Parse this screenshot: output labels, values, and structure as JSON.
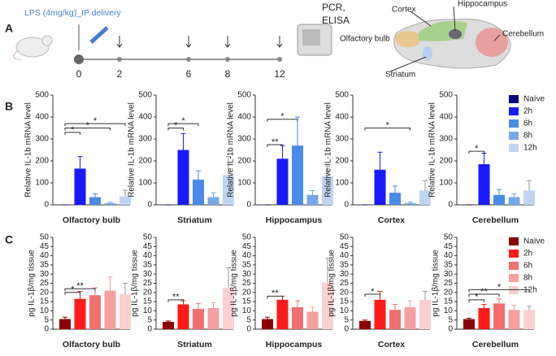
{
  "panel_labels": [
    "A",
    "B",
    "C"
  ],
  "timeline": {
    "label": "LPS (4mg/kg)_IP delivery",
    "times": [
      0,
      2,
      6,
      8,
      12
    ],
    "assay": [
      "PCR,",
      "ELISA"
    ]
  },
  "brain_regions": [
    "Cortex",
    "Hippocampus",
    "Cerebellum",
    "Olfactory bulb",
    "Striatum"
  ],
  "chart_data": [
    {
      "type": "bar",
      "categories": [
        "Olfactory bulb"
      ],
      "ylabel": "Relative IL-1b mRNA level",
      "ylim": [
        0,
        500
      ],
      "yticks": [
        0,
        100,
        200,
        300,
        400,
        500
      ],
      "series": [
        {
          "name": "Naïve",
          "color": "#000080",
          "values": [
            0
          ],
          "errors": [
            0
          ]
        },
        {
          "name": "2h",
          "color": "#1a1aff",
          "values": [
            165
          ],
          "errors": [
            55
          ]
        },
        {
          "name": "6h",
          "color": "#4a8ae8",
          "values": [
            35
          ],
          "errors": [
            15
          ]
        },
        {
          "name": "8h",
          "color": "#78a8e8",
          "values": [
            8
          ],
          "errors": [
            5
          ]
        },
        {
          "name": "12h",
          "color": "#c0d4f2",
          "values": [
            38
          ],
          "errors": [
            28
          ]
        }
      ],
      "annotations": [
        {
          "text": "*",
          "between": [
            0,
            4
          ],
          "y": 370
        },
        {
          "text": "*",
          "between": [
            0,
            3
          ],
          "y": 350
        },
        {
          "text": "*",
          "between": [
            0,
            1
          ],
          "y": 330
        }
      ]
    },
    {
      "type": "bar",
      "categories": [
        "Striatum"
      ],
      "ylabel": "Relative IL-1b mRNA level",
      "ylim": [
        0,
        500
      ],
      "yticks": [
        0,
        100,
        200,
        300,
        400,
        500
      ],
      "series": [
        {
          "name": "Naïve",
          "color": "#000080",
          "values": [
            0
          ],
          "errors": [
            0
          ]
        },
        {
          "name": "2h",
          "color": "#1a1aff",
          "values": [
            250
          ],
          "errors": [
            75
          ]
        },
        {
          "name": "6h",
          "color": "#4a8ae8",
          "values": [
            115
          ],
          "errors": [
            40
          ]
        },
        {
          "name": "8h",
          "color": "#78a8e8",
          "values": [
            35
          ],
          "errors": [
            20
          ]
        },
        {
          "name": "12h",
          "color": "#c0d4f2",
          "values": [
            135
          ],
          "errors": [
            85
          ]
        }
      ],
      "annotations": [
        {
          "text": "*",
          "between": [
            0,
            2
          ],
          "y": 370
        },
        {
          "text": "*",
          "between": [
            0,
            1
          ],
          "y": 350
        }
      ]
    },
    {
      "type": "bar",
      "categories": [
        "Hippocampus"
      ],
      "ylabel": "Relative IL-1b mRNA level",
      "ylim": [
        0,
        500
      ],
      "yticks": [
        0,
        100,
        200,
        300,
        400,
        500
      ],
      "series": [
        {
          "name": "Naïve",
          "color": "#000080",
          "values": [
            0
          ],
          "errors": [
            0
          ]
        },
        {
          "name": "2h",
          "color": "#1a1aff",
          "values": [
            210
          ],
          "errors": [
            60
          ]
        },
        {
          "name": "6h",
          "color": "#4a8ae8",
          "values": [
            270
          ],
          "errors": [
            130
          ]
        },
        {
          "name": "8h",
          "color": "#78a8e8",
          "values": [
            45
          ],
          "errors": [
            20
          ]
        },
        {
          "name": "12h",
          "color": "#c0d4f2",
          "values": [
            130
          ],
          "errors": [
            45
          ]
        }
      ],
      "annotations": [
        {
          "text": "*",
          "between": [
            0,
            2
          ],
          "y": 390
        },
        {
          "text": "**",
          "between": [
            0,
            1
          ],
          "y": 274
        }
      ]
    },
    {
      "type": "bar",
      "categories": [
        "Cortex"
      ],
      "ylabel": "Relative IL-1b mRNA level",
      "ylim": [
        0,
        500
      ],
      "yticks": [
        0,
        100,
        200,
        300,
        400,
        500
      ],
      "series": [
        {
          "name": "Naïve",
          "color": "#000080",
          "values": [
            0
          ],
          "errors": [
            0
          ]
        },
        {
          "name": "2h",
          "color": "#1a1aff",
          "values": [
            160
          ],
          "errors": [
            80
          ]
        },
        {
          "name": "6h",
          "color": "#4a8ae8",
          "values": [
            55
          ],
          "errors": [
            30
          ]
        },
        {
          "name": "8h",
          "color": "#78a8e8",
          "values": [
            8
          ],
          "errors": [
            5
          ]
        },
        {
          "name": "12h",
          "color": "#c0d4f2",
          "values": [
            65
          ],
          "errors": [
            45
          ]
        }
      ],
      "annotations": [
        {
          "text": "*",
          "between": [
            0,
            3
          ],
          "y": 350
        }
      ]
    },
    {
      "type": "bar",
      "categories": [
        "Cerebellum"
      ],
      "ylabel": "Relative IL-1b mRNA level",
      "ylim": [
        0,
        500
      ],
      "yticks": [
        0,
        100,
        200,
        300,
        400,
        500
      ],
      "legend": "right",
      "series": [
        {
          "name": "Naïve",
          "color": "#000080",
          "values": [
            0
          ],
          "errors": [
            0
          ]
        },
        {
          "name": "2h",
          "color": "#1a1aff",
          "values": [
            185
          ],
          "errors": [
            50
          ]
        },
        {
          "name": "6h",
          "color": "#4a8ae8",
          "values": [
            45
          ],
          "errors": [
            25
          ]
        },
        {
          "name": "8h",
          "color": "#78a8e8",
          "values": [
            35
          ],
          "errors": [
            15
          ]
        },
        {
          "name": "12h",
          "color": "#c0d4f2",
          "values": [
            65
          ],
          "errors": [
            45
          ]
        }
      ],
      "annotations": [
        {
          "text": "*",
          "between": [
            0,
            1
          ],
          "y": 244
        }
      ]
    },
    {
      "type": "bar",
      "categories": [
        "Olfactory bulb"
      ],
      "ylabel": "pg IL-1β/mg tissue",
      "ylim": [
        0,
        50
      ],
      "yticks": [
        0,
        5,
        10,
        15,
        20,
        25,
        30,
        35,
        40,
        45,
        50
      ],
      "series": [
        {
          "name": "Naïve",
          "color": "#8b0000",
          "values": [
            5.5
          ],
          "errors": [
            1
          ]
        },
        {
          "name": "2h",
          "color": "#ff1a1a",
          "values": [
            16.5
          ],
          "errors": [
            4
          ]
        },
        {
          "name": "6h",
          "color": "#f07070",
          "values": [
            18.5
          ],
          "errors": [
            4
          ]
        },
        {
          "name": "8h",
          "color": "#f4a0a0",
          "values": [
            21
          ],
          "errors": [
            7.5
          ]
        },
        {
          "name": "12h",
          "color": "#fad0d0",
          "values": [
            19
          ],
          "errors": [
            6
          ]
        }
      ],
      "annotations": [
        {
          "text": "**",
          "between": [
            0,
            2
          ],
          "y": 22
        },
        {
          "text": "*",
          "between": [
            0,
            1
          ],
          "y": 20
        }
      ]
    },
    {
      "type": "bar",
      "categories": [
        "Striatum"
      ],
      "ylabel": "pg IL-1β/mg tissue",
      "ylim": [
        0,
        50
      ],
      "yticks": [
        0,
        5,
        10,
        15,
        20,
        25,
        30,
        35,
        40,
        45,
        50
      ],
      "series": [
        {
          "name": "Naïve",
          "color": "#8b0000",
          "values": [
            4
          ],
          "errors": [
            0.5
          ]
        },
        {
          "name": "2h",
          "color": "#ff1a1a",
          "values": [
            13.5
          ],
          "errors": [
            2
          ]
        },
        {
          "name": "6h",
          "color": "#f07070",
          "values": [
            11
          ],
          "errors": [
            3
          ]
        },
        {
          "name": "8h",
          "color": "#f4a0a0",
          "values": [
            11.5
          ],
          "errors": [
            3
          ]
        },
        {
          "name": "12h",
          "color": "#fad0d0",
          "values": [
            22.5
          ],
          "errors": [
            11
          ]
        }
      ],
      "annotations": [
        {
          "text": "**",
          "between": [
            0,
            1
          ],
          "y": 16
        }
      ]
    },
    {
      "type": "bar",
      "categories": [
        "Hippocampus"
      ],
      "ylabel": "pg IL-1β/mg tissue",
      "ylim": [
        0,
        50
      ],
      "yticks": [
        0,
        5,
        10,
        15,
        20,
        25,
        30,
        35,
        40,
        45,
        50
      ],
      "series": [
        {
          "name": "Naïve",
          "color": "#8b0000",
          "values": [
            5.5
          ],
          "errors": [
            1
          ]
        },
        {
          "name": "2h",
          "color": "#ff1a1a",
          "values": [
            16
          ],
          "errors": [
            2
          ]
        },
        {
          "name": "6h",
          "color": "#f07070",
          "values": [
            12
          ],
          "errors": [
            3.5
          ]
        },
        {
          "name": "8h",
          "color": "#f4a0a0",
          "values": [
            9.5
          ],
          "errors": [
            2.5
          ]
        },
        {
          "name": "12h",
          "color": "#fad0d0",
          "values": [
            25.5
          ],
          "errors": [
            13
          ]
        }
      ],
      "annotations": [
        {
          "text": "**",
          "between": [
            0,
            1
          ],
          "y": 18
        }
      ]
    },
    {
      "type": "bar",
      "categories": [
        "Cortex"
      ],
      "ylabel": "pg IL-1β/mg tissue",
      "ylim": [
        0,
        50
      ],
      "yticks": [
        0,
        5,
        10,
        15,
        20,
        25,
        30,
        35,
        40,
        45,
        50
      ],
      "series": [
        {
          "name": "Naïve",
          "color": "#8b0000",
          "values": [
            4.5
          ],
          "errors": [
            0.5
          ]
        },
        {
          "name": "2h",
          "color": "#ff1a1a",
          "values": [
            16
          ],
          "errors": [
            4.5
          ]
        },
        {
          "name": "6h",
          "color": "#f07070",
          "values": [
            10.5
          ],
          "errors": [
            3
          ]
        },
        {
          "name": "8h",
          "color": "#f4a0a0",
          "values": [
            12
          ],
          "errors": [
            3.5
          ]
        },
        {
          "name": "12h",
          "color": "#fad0d0",
          "values": [
            16
          ],
          "errors": [
            4.5
          ]
        }
      ],
      "annotations": [
        {
          "text": "*",
          "between": [
            0,
            1
          ],
          "y": 19
        }
      ]
    },
    {
      "type": "bar",
      "categories": [
        "Cerebellum"
      ],
      "ylabel": "pg IL-1β/mg tissue",
      "ylim": [
        0,
        50
      ],
      "yticks": [
        0,
        5,
        10,
        15,
        20,
        25,
        30,
        35,
        40,
        45,
        50
      ],
      "legend": "right",
      "series": [
        {
          "name": "Naïve",
          "color": "#8b0000",
          "values": [
            5.5
          ],
          "errors": [
            0.5
          ]
        },
        {
          "name": "2h",
          "color": "#ff1a1a",
          "values": [
            11.5
          ],
          "errors": [
            2
          ]
        },
        {
          "name": "6h",
          "color": "#f07070",
          "values": [
            14
          ],
          "errors": [
            2.5
          ]
        },
        {
          "name": "8h",
          "color": "#f4a0a0",
          "values": [
            10.5
          ],
          "errors": [
            2.5
          ]
        },
        {
          "name": "12h",
          "color": "#fad0d0",
          "values": [
            10.5
          ],
          "errors": [
            2
          ]
        }
      ],
      "annotations": [
        {
          "text": "*",
          "between": [
            0,
            4
          ],
          "y": 21.5
        },
        {
          "text": "**",
          "between": [
            0,
            2
          ],
          "y": 19
        },
        {
          "text": "*",
          "between": [
            0,
            1
          ],
          "y": 16
        }
      ]
    }
  ]
}
